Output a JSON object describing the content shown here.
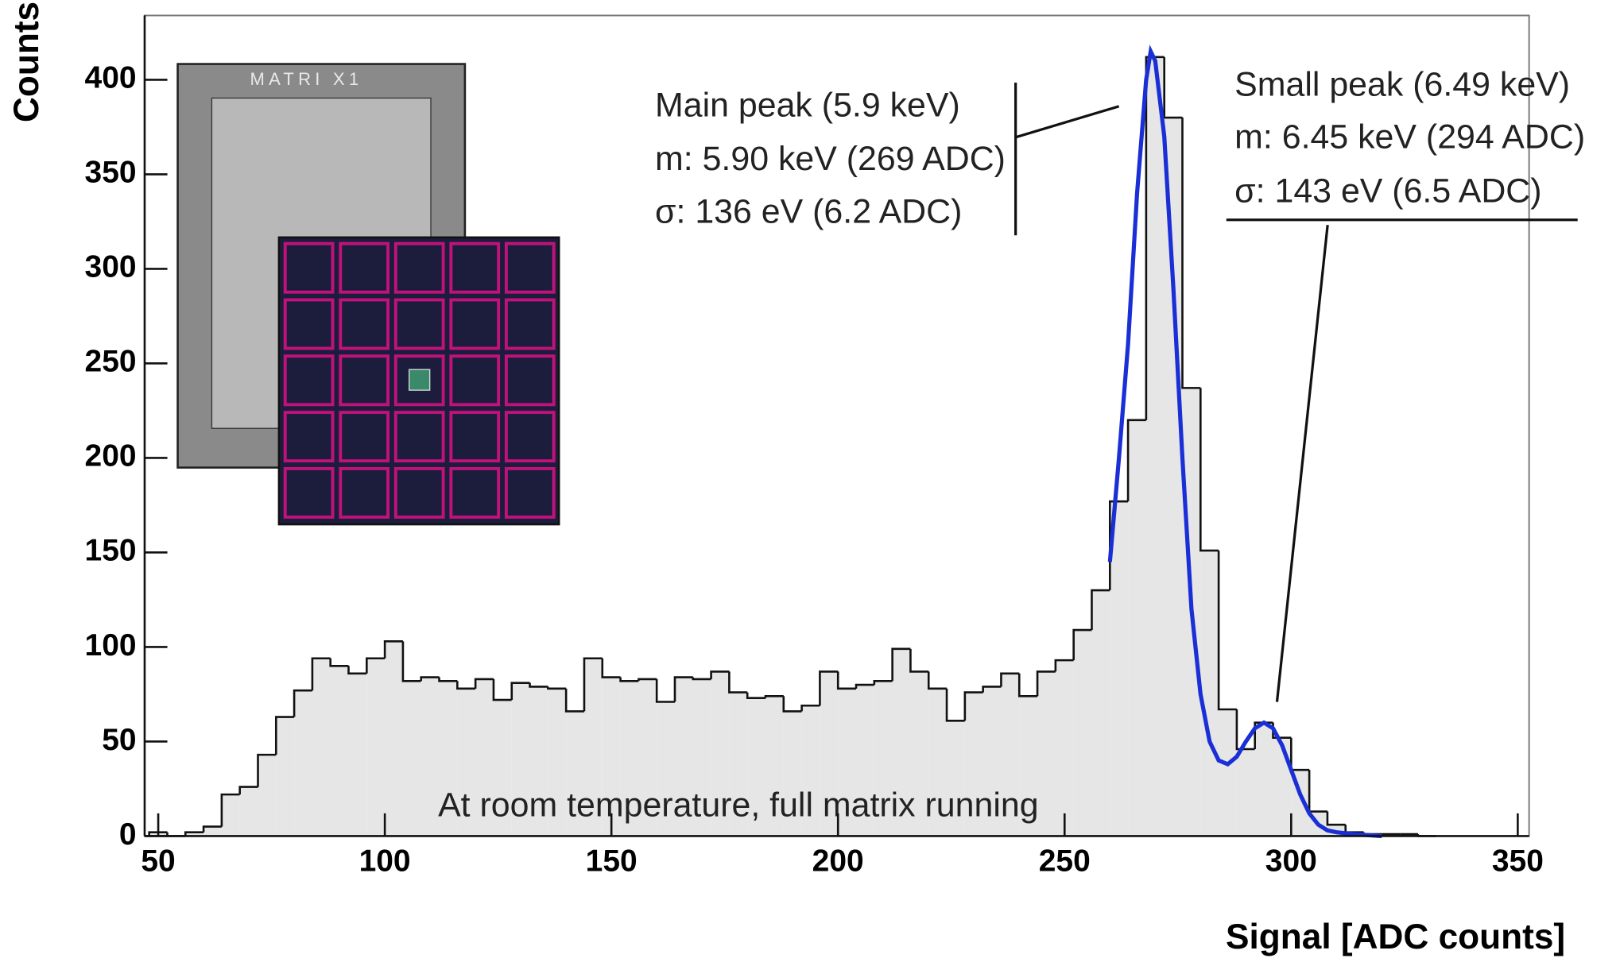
{
  "chart_data": {
    "type": "histogram",
    "xlabel": "Signal [ADC counts]",
    "ylabel": "Counts",
    "bins": [
      48,
      52,
      56,
      60,
      64,
      68,
      72,
      76,
      80,
      84,
      88,
      92,
      96,
      100,
      104,
      108,
      112,
      116,
      120,
      124,
      128,
      132,
      136,
      140,
      144,
      148,
      152,
      156,
      160,
      164,
      168,
      172,
      176,
      180,
      184,
      188,
      192,
      196,
      200,
      204,
      208,
      212,
      216,
      220,
      224,
      228,
      232,
      236,
      240,
      244,
      248,
      252,
      256,
      260,
      264,
      268,
      272,
      276,
      280,
      284,
      288,
      292,
      296,
      300,
      304,
      308,
      312,
      316,
      320,
      324,
      328,
      332
    ],
    "values": [
      2,
      0,
      2,
      5,
      22,
      26,
      43,
      63,
      77,
      94,
      90,
      86,
      94,
      103,
      82,
      84,
      82,
      78,
      83,
      72,
      81,
      79,
      78,
      66,
      94,
      84,
      82,
      83,
      71,
      84,
      83,
      87,
      76,
      73,
      74,
      66,
      69,
      87,
      78,
      80,
      82,
      99,
      87,
      78,
      61,
      76,
      79,
      86,
      74,
      87,
      93,
      109,
      130,
      177,
      220,
      412,
      380,
      237,
      151,
      67,
      46,
      60,
      52,
      35,
      13,
      6,
      2,
      1,
      1,
      1,
      0
    ],
    "color": "#e6e6e6",
    "fit": {
      "color": "#1a2fd6",
      "x": [
        260,
        262,
        264,
        266,
        268,
        269,
        270,
        272,
        274,
        276,
        278,
        280,
        282,
        284,
        286,
        288,
        290,
        292,
        294,
        296,
        298,
        300,
        302,
        304,
        306,
        308,
        310,
        314,
        320
      ],
      "values": [
        145,
        200,
        260,
        340,
        400,
        415,
        410,
        370,
        290,
        200,
        120,
        75,
        50,
        40,
        38,
        42,
        50,
        57,
        60,
        57,
        48,
        35,
        22,
        12,
        6,
        3,
        2,
        1,
        0
      ]
    },
    "xlim": [
      47,
      352.5
    ],
    "ylim": [
      0,
      434
    ],
    "xticks": [
      50,
      100,
      150,
      200,
      250,
      300,
      350
    ],
    "yticks": [
      0,
      50,
      100,
      150,
      200,
      250,
      300,
      350,
      400
    ],
    "annotations": {
      "main_peak": [
        "Main peak (5.9 keV)",
        "m: 5.90 keV (269 ADC)",
        "σ: 136 eV (6.2  ADC)"
      ],
      "small_peak": [
        "Small peak (6.49 keV)",
        "m: 6.45 keV (294 ADC)",
        "σ: 143 eV (6.5  ADC)"
      ],
      "note": "At room temperature, full matrix running",
      "inset_label": "MATRI X1"
    }
  }
}
